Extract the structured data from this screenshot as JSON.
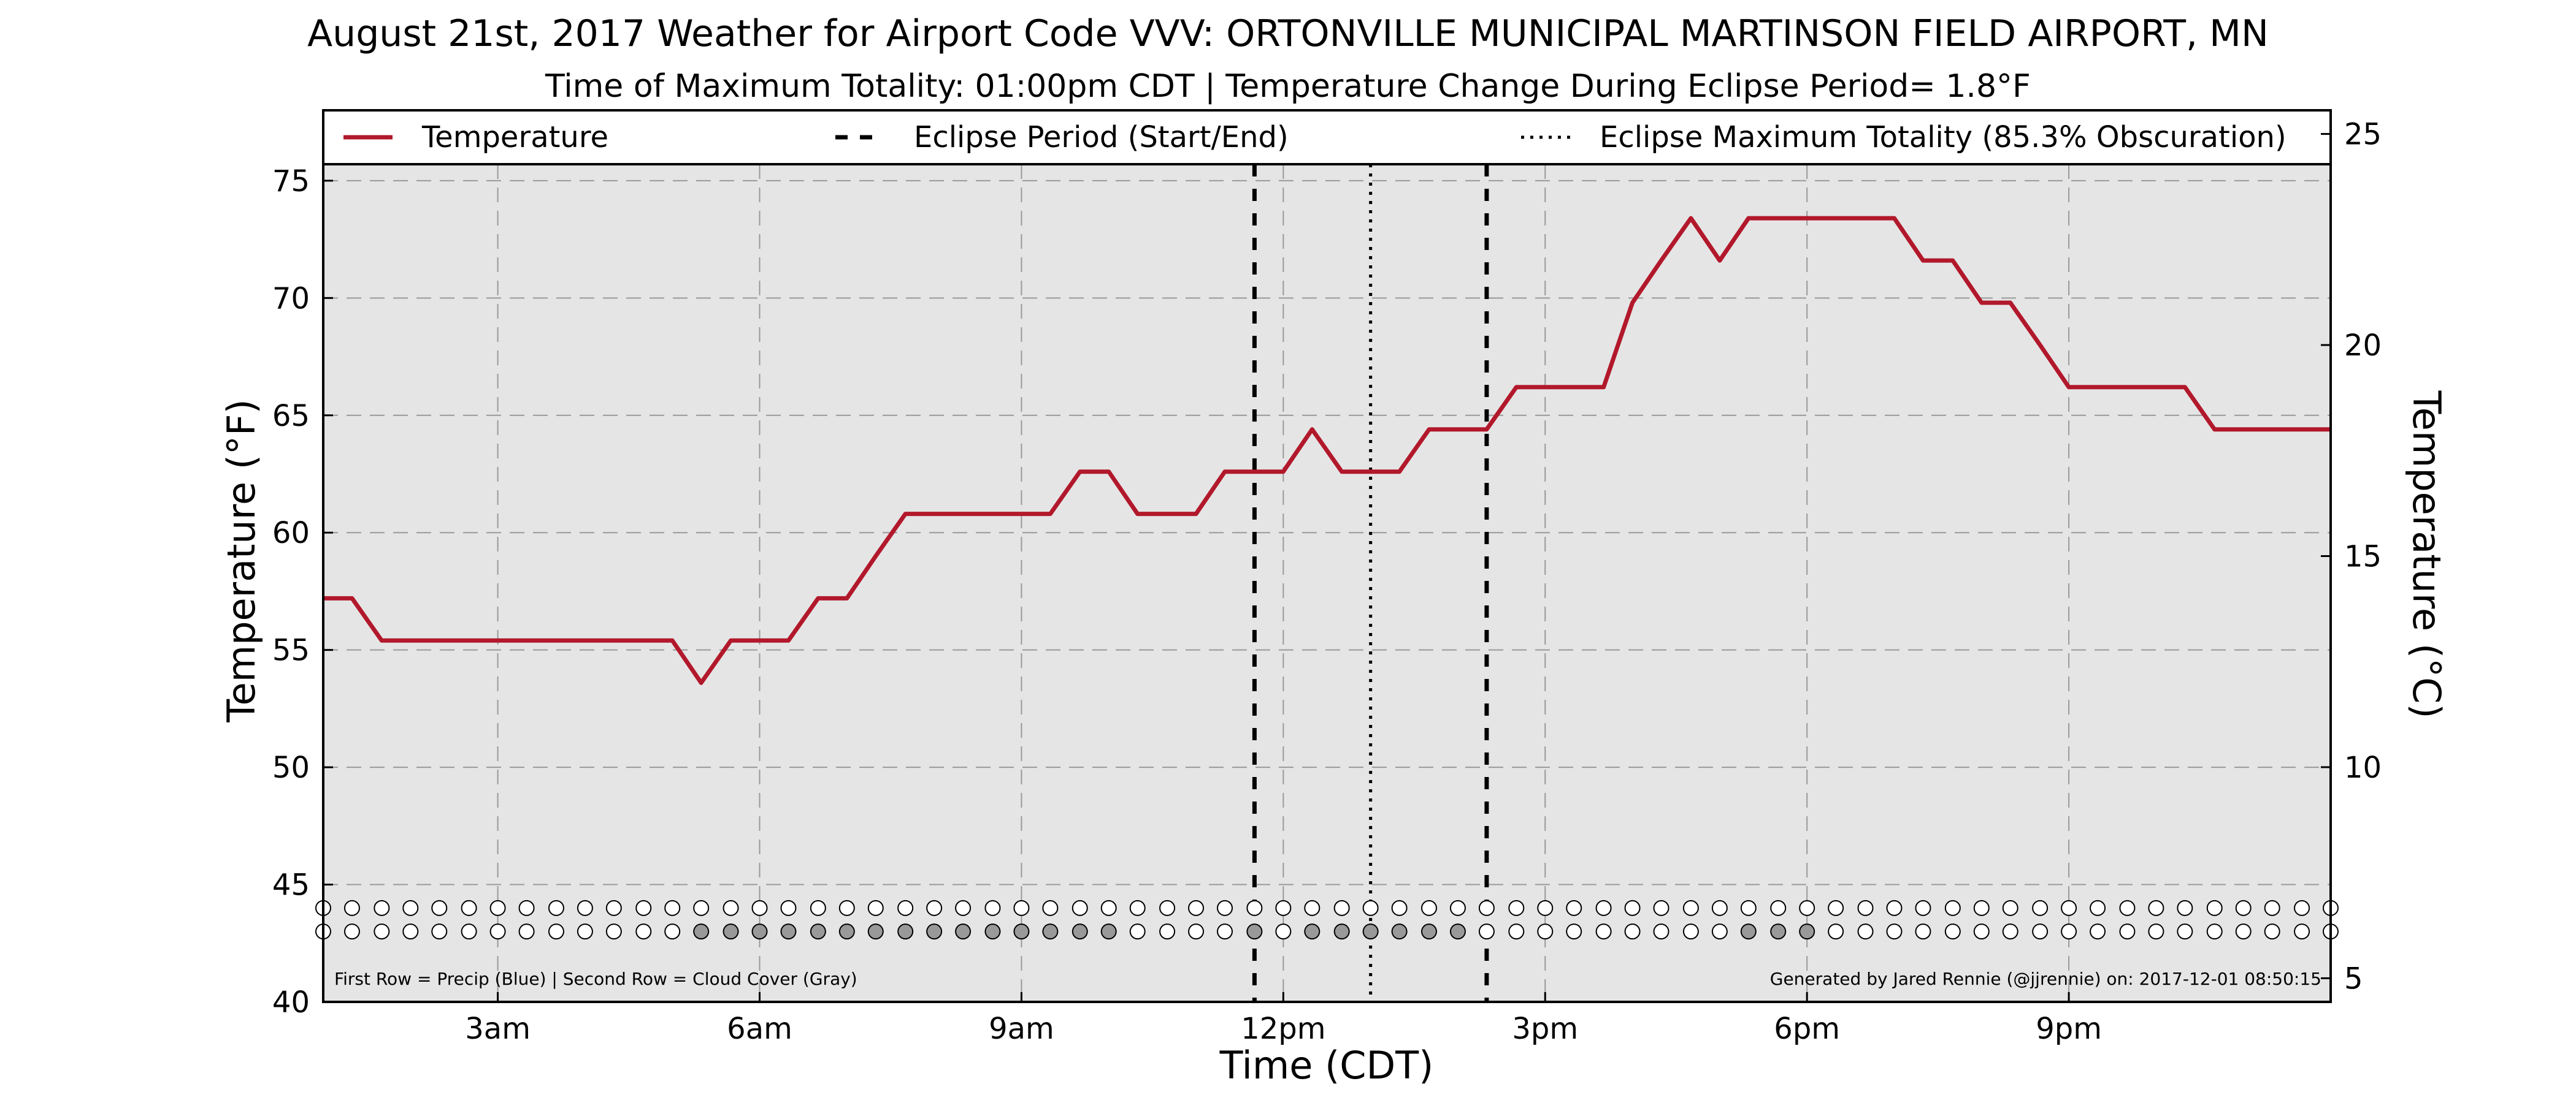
{
  "chart_data": {
    "type": "line",
    "title": "August 21st, 2017 Weather for Airport Code VVV: ORTONVILLE MUNICIPAL MARTINSON FIELD AIRPORT, MN",
    "subtitle": "Time of Maximum Totality: 01:00pm CDT | Temperature Change During Eclipse Period= 1.8°F",
    "xlabel": "Time (CDT)",
    "ylabel": "Temperature (°F)",
    "y2label": "Temperature (°C)",
    "xlim": [
      1.0,
      24.0
    ],
    "ylim": [
      40,
      78
    ],
    "y2lim": [
      4.44,
      25.56
    ],
    "grid": true,
    "legend_position": "top",
    "x_ticks": [
      {
        "x": 3,
        "label": "3am"
      },
      {
        "x": 6,
        "label": "6am"
      },
      {
        "x": 9,
        "label": "9am"
      },
      {
        "x": 12,
        "label": "12pm"
      },
      {
        "x": 15,
        "label": "3pm"
      },
      {
        "x": 18,
        "label": "6pm"
      },
      {
        "x": 21,
        "label": "9pm"
      }
    ],
    "y_ticks": [
      "40",
      "45",
      "50",
      "55",
      "60",
      "65",
      "70",
      "75"
    ],
    "y2_ticks": [
      "5",
      "10",
      "15",
      "20",
      "25"
    ],
    "legend": {
      "temperature": "Temperature",
      "eclipse_period": "Eclipse Period (Start/End)",
      "eclipse_max": "Eclipse Maximum Totality (85.3% Obscuration)"
    },
    "series": [
      {
        "name": "Temperature",
        "color": "#b2182b",
        "x": [
          1.0,
          1.33,
          1.67,
          2.0,
          2.33,
          2.67,
          3.0,
          3.33,
          3.67,
          4.0,
          4.33,
          4.67,
          5.0,
          5.33,
          5.67,
          6.0,
          6.33,
          6.67,
          7.0,
          7.33,
          7.67,
          8.0,
          8.33,
          8.67,
          9.0,
          9.33,
          9.67,
          10.0,
          10.33,
          10.67,
          11.0,
          11.33,
          11.67,
          12.0,
          12.33,
          12.67,
          13.0,
          13.33,
          13.67,
          14.0,
          14.33,
          14.67,
          15.0,
          15.33,
          15.67,
          16.0,
          16.33,
          16.67,
          17.0,
          17.33,
          17.67,
          18.0,
          18.33,
          18.67,
          19.0,
          19.33,
          19.67,
          20.0,
          20.33,
          20.67,
          21.0,
          21.33,
          21.67,
          22.0,
          22.33,
          22.67,
          23.0,
          23.33,
          23.67,
          24.0
        ],
        "values": [
          57.2,
          57.2,
          55.4,
          55.4,
          55.4,
          55.4,
          55.4,
          55.4,
          55.4,
          55.4,
          55.4,
          55.4,
          55.4,
          53.6,
          55.4,
          55.4,
          55.4,
          57.2,
          57.2,
          59.0,
          60.8,
          60.8,
          60.8,
          60.8,
          60.8,
          60.8,
          62.6,
          62.6,
          60.8,
          60.8,
          60.8,
          62.6,
          62.6,
          62.6,
          64.4,
          62.6,
          62.6,
          62.6,
          64.4,
          64.4,
          64.4,
          66.2,
          66.2,
          66.2,
          66.2,
          69.8,
          71.6,
          73.4,
          71.6,
          73.4,
          73.4,
          73.4,
          73.4,
          73.4,
          73.4,
          71.6,
          71.6,
          69.8,
          69.8,
          68.0,
          66.2,
          66.2,
          66.2,
          66.2,
          66.2,
          64.4,
          64.4,
          64.4,
          64.4,
          64.4
        ]
      }
    ],
    "eclipse": {
      "start": 11.67,
      "max": 13.0,
      "end": 14.33
    },
    "observations": {
      "x": [
        1.0,
        1.33,
        1.67,
        2.0,
        2.33,
        2.67,
        3.0,
        3.33,
        3.67,
        4.0,
        4.33,
        4.67,
        5.0,
        5.33,
        5.67,
        6.0,
        6.33,
        6.67,
        7.0,
        7.33,
        7.67,
        8.0,
        8.33,
        8.67,
        9.0,
        9.33,
        9.67,
        10.0,
        10.33,
        10.67,
        11.0,
        11.33,
        11.67,
        12.0,
        12.33,
        12.67,
        13.0,
        13.33,
        13.67,
        14.0,
        14.33,
        14.67,
        15.0,
        15.33,
        15.67,
        16.0,
        16.33,
        16.67,
        17.0,
        17.33,
        17.67,
        18.0,
        18.33,
        18.67,
        19.0,
        19.33,
        19.67,
        20.0,
        20.33,
        20.67,
        21.0,
        21.33,
        21.67,
        22.0,
        22.33,
        22.67,
        23.0,
        23.33,
        23.67,
        24.0
      ],
      "precip_color": "#ffffff",
      "cloud_colors": [
        "#ffffff",
        "#ffffff",
        "#ffffff",
        "#ffffff",
        "#ffffff",
        "#ffffff",
        "#ffffff",
        "#ffffff",
        "#ffffff",
        "#ffffff",
        "#ffffff",
        "#ffffff",
        "#ffffff",
        "#999999",
        "#999999",
        "#999999",
        "#999999",
        "#999999",
        "#999999",
        "#999999",
        "#999999",
        "#999999",
        "#999999",
        "#999999",
        "#999999",
        "#999999",
        "#999999",
        "#999999",
        "#ffffff",
        "#ffffff",
        "#ffffff",
        "#ffffff",
        "#999999",
        "#ffffff",
        "#999999",
        "#999999",
        "#999999",
        "#999999",
        "#999999",
        "#999999",
        "#ffffff",
        "#ffffff",
        "#ffffff",
        "#ffffff",
        "#ffffff",
        "#ffffff",
        "#ffffff",
        "#ffffff",
        "#ffffff",
        "#999999",
        "#999999",
        "#999999",
        "#ffffff",
        "#ffffff",
        "#ffffff",
        "#ffffff",
        "#ffffff",
        "#ffffff",
        "#ffffff",
        "#ffffff",
        "#ffffff",
        "#ffffff",
        "#ffffff",
        "#ffffff",
        "#ffffff",
        "#ffffff",
        "#ffffff",
        "#ffffff",
        "#ffffff",
        "#ffffff"
      ]
    },
    "footnote_left": "First Row = Precip (Blue) | Second Row = Cloud Cover (Gray)",
    "footnote_right": "Generated by Jared Rennie (@jjrennie) on: 2017-12-01 08:50:15"
  }
}
